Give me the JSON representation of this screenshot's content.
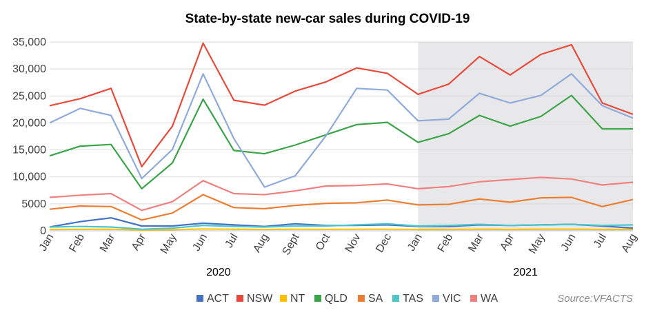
{
  "chart_data": {
    "type": "line",
    "title": "State-by-state new-car sales during COVID-19",
    "categories": [
      "Jan",
      "Feb",
      "Mar",
      "Apr",
      "May",
      "Jun",
      "Jul",
      "Aug",
      "Sept",
      "Oct",
      "Nov",
      "Dec",
      "Jan",
      "Feb",
      "Mar",
      "Apr",
      "May",
      "Jun",
      "Jul",
      "Aug"
    ],
    "years": [
      {
        "label": "2020",
        "start": 0,
        "end": 11
      },
      {
        "label": "2021",
        "start": 12,
        "end": 19
      }
    ],
    "shaded_range": [
      12,
      19
    ],
    "shaded_color": "#e8e8ea",
    "ylim": [
      0,
      35000
    ],
    "yticks": [
      0,
      5000,
      10000,
      15000,
      20000,
      25000,
      30000,
      35000
    ],
    "ytick_labels": [
      "0",
      "5000",
      "10,000",
      "15,000",
      "20,000",
      "25,000",
      "30,000",
      "35,000"
    ],
    "grid": true,
    "legend_position": "bottom",
    "series": [
      {
        "name": "ACT",
        "color": "#4472c4",
        "values": [
          700,
          1700,
          2400,
          900,
          900,
          1400,
          1100,
          800,
          1300,
          1000,
          1000,
          1100,
          800,
          800,
          1100,
          1000,
          1100,
          1200,
          900,
          500
        ]
      },
      {
        "name": "NSW",
        "color": "#e8493a",
        "values": [
          23200,
          24500,
          26400,
          11900,
          19400,
          34800,
          24200,
          23300,
          25900,
          27600,
          30200,
          29200,
          25300,
          27200,
          32300,
          28900,
          32700,
          34500,
          23700,
          21600
        ]
      },
      {
        "name": "NT",
        "color": "#ffc000",
        "values": [
          250,
          270,
          300,
          150,
          200,
          350,
          300,
          250,
          300,
          280,
          300,
          300,
          250,
          250,
          300,
          250,
          300,
          300,
          250,
          250
        ]
      },
      {
        "name": "QLD",
        "color": "#3aa448",
        "values": [
          13900,
          15700,
          16000,
          7800,
          12600,
          24400,
          14900,
          14300,
          15900,
          17800,
          19700,
          20100,
          16400,
          18000,
          21400,
          19400,
          21200,
          25100,
          18900,
          18900
        ]
      },
      {
        "name": "SA",
        "color": "#ed7d31",
        "values": [
          4000,
          4600,
          4500,
          2000,
          3300,
          6700,
          4300,
          4100,
          4700,
          5100,
          5200,
          5700,
          4800,
          4900,
          5900,
          5300,
          6100,
          6200,
          4500,
          5800
        ]
      },
      {
        "name": "TAS",
        "color": "#4bc6c9",
        "values": [
          700,
          800,
          700,
          300,
          500,
          1000,
          800,
          700,
          900,
          900,
          1100,
          1300,
          900,
          1000,
          1200,
          1000,
          1100,
          1200,
          1000,
          1100
        ]
      },
      {
        "name": "VIC",
        "color": "#8eaadb",
        "values": [
          20000,
          22700,
          21400,
          9700,
          15100,
          29100,
          17100,
          8100,
          10200,
          17600,
          26400,
          26100,
          20400,
          20700,
          25500,
          23700,
          25100,
          29100,
          23200,
          20900
        ]
      },
      {
        "name": "WA",
        "color": "#f08080",
        "values": [
          6200,
          6600,
          6900,
          3800,
          5400,
          9300,
          6900,
          6700,
          7400,
          8300,
          8400,
          8700,
          7800,
          8200,
          9100,
          9500,
          9900,
          9600,
          8500,
          9000
        ]
      }
    ]
  },
  "source": "Source:VFACTS"
}
